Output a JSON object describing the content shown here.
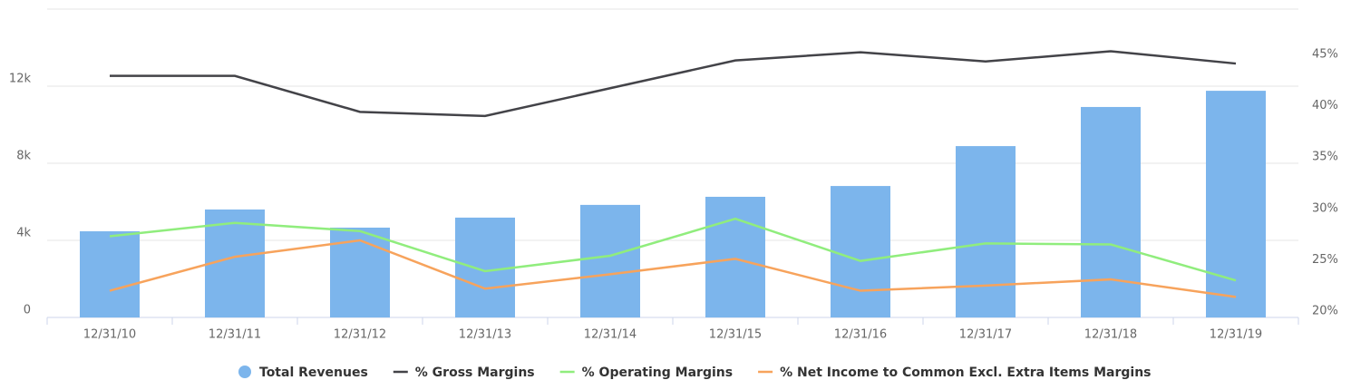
{
  "chart_data": {
    "type": "bar_line",
    "categories": [
      "12/31/10",
      "12/31/11",
      "12/31/12",
      "12/31/13",
      "12/31/14",
      "12/31/15",
      "12/31/16",
      "12/31/17",
      "12/31/18",
      "12/31/19"
    ],
    "series": [
      {
        "name": "Total Revenues",
        "color": "#7cb5ec",
        "type": "bar",
        "values": [
          4470,
          5600,
          4660,
          5180,
          5840,
          6260,
          6820,
          8890,
          10920,
          11760
        ]
      },
      {
        "name": "% Gross Margins",
        "color": "#434348",
        "type": "line",
        "axis": "y2",
        "values": [
          42.9,
          42.9,
          39.4,
          39.0,
          41.7,
          44.4,
          45.2,
          44.3,
          45.3,
          44.1
        ]
      },
      {
        "name": "% Operating Margins",
        "color": "#90ed7d",
        "type": "line",
        "axis": "y2",
        "values": [
          27.3,
          28.6,
          27.8,
          23.9,
          25.4,
          29.0,
          24.9,
          26.6,
          26.5,
          23.0
        ]
      },
      {
        "name": "% Net Income to Common Excl. Extra Items Margins",
        "color": "#f7a35c",
        "type": "line",
        "axis": "y2",
        "values": [
          22.0,
          25.3,
          26.9,
          22.2,
          23.6,
          25.1,
          22.0,
          22.5,
          23.1,
          21.4
        ]
      }
    ],
    "ylim": [
      0,
      16000
    ],
    "yticks": [
      0,
      {
        "value": 4000,
        "label": "4k"
      },
      {
        "value": 8000,
        "label": "8k"
      },
      {
        "value": 12000,
        "label": "12k"
      }
    ],
    "y2lim": [
      19.4,
      49.4
    ],
    "y2ticks": [
      {
        "value": 20,
        "label": "20%"
      },
      {
        "value": 25,
        "label": "25%"
      },
      {
        "value": 30,
        "label": "30%"
      },
      {
        "value": 35,
        "label": "35%"
      },
      {
        "value": 40,
        "label": "40%"
      },
      {
        "value": 45,
        "label": "45%"
      }
    ],
    "grid": true,
    "legend": "bottom"
  }
}
